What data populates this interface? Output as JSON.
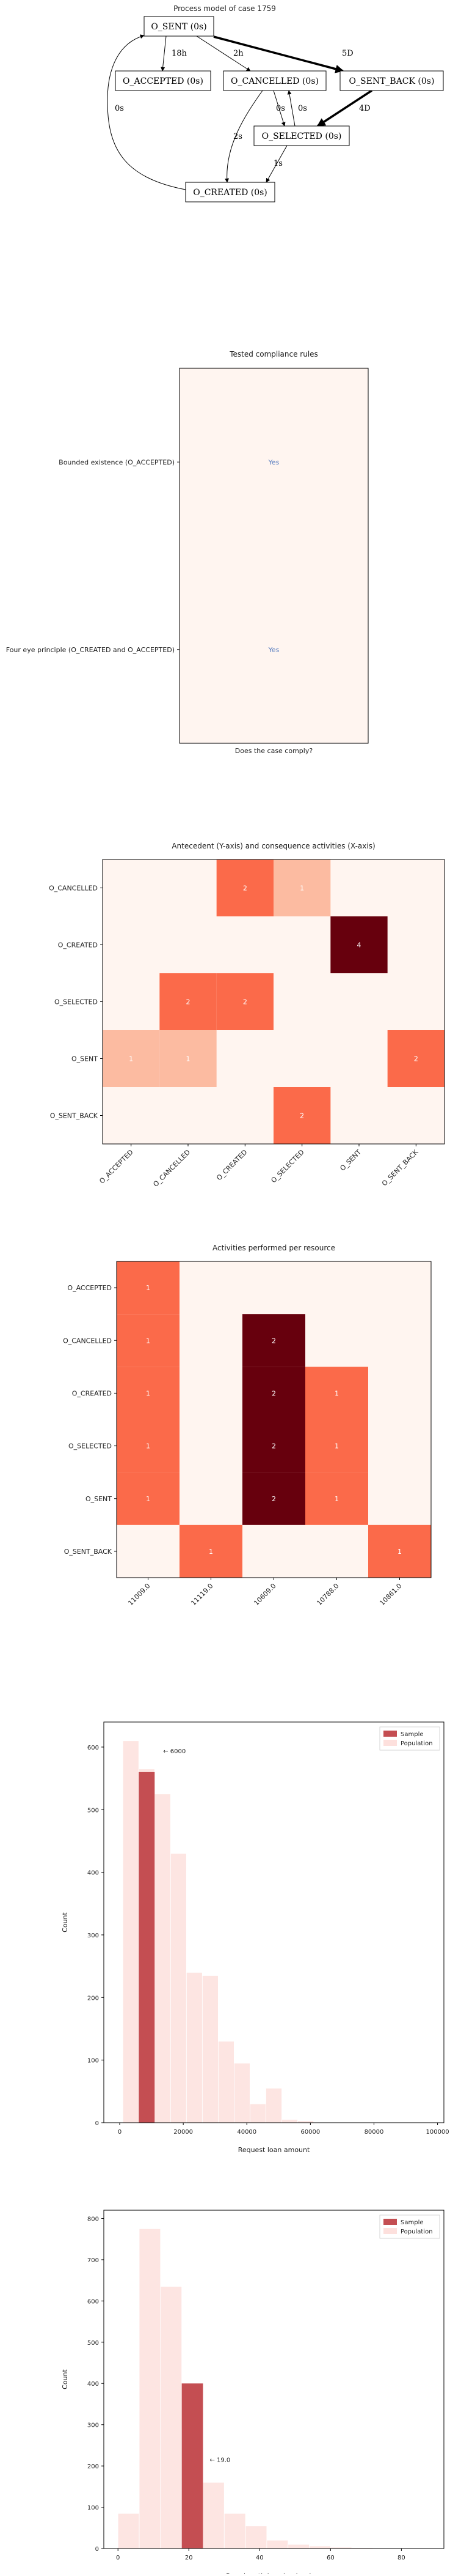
{
  "chart_data": [
    {
      "type": "diagram",
      "title": "Process model of case 1759",
      "nodes": [
        {
          "id": "sent",
          "label": "O_SENT (0s)"
        },
        {
          "id": "accepted",
          "label": "O_ACCEPTED (0s)"
        },
        {
          "id": "cancelled",
          "label": "O_CANCELLED (0s)"
        },
        {
          "id": "sent_back",
          "label": "O_SENT_BACK (0s)"
        },
        {
          "id": "selected",
          "label": "O_SELECTED (0s)"
        },
        {
          "id": "created",
          "label": "O_CREATED (0s)"
        }
      ],
      "edges": [
        {
          "from": "sent",
          "to": "accepted",
          "label": "18h"
        },
        {
          "from": "sent",
          "to": "cancelled",
          "label": "2h"
        },
        {
          "from": "sent",
          "to": "sent_back",
          "label": "5D"
        },
        {
          "from": "created",
          "to": "sent",
          "label": "0s"
        },
        {
          "from": "cancelled",
          "to": "created",
          "label": "2s"
        },
        {
          "from": "cancelled",
          "to": "selected",
          "label": "0s"
        },
        {
          "from": "selected",
          "to": "cancelled",
          "label": "0s"
        },
        {
          "from": "sent_back",
          "to": "selected",
          "label": "4D"
        },
        {
          "from": "selected",
          "to": "created",
          "label": "1s"
        }
      ]
    },
    {
      "type": "table",
      "title": "Tested compliance rules",
      "xlabel": "Does the case comply?",
      "rows": [
        {
          "rule": "Bounded existence (O_ACCEPTED)",
          "value": "Yes"
        },
        {
          "rule": "Four eye principle (O_CREATED and O_ACCEPTED)",
          "value": "Yes"
        }
      ]
    },
    {
      "type": "heatmap",
      "title": "Antecedent (Y-axis) and consequence activities (X-axis)",
      "y": [
        "O_CANCELLED",
        "O_CREATED",
        "O_SELECTED",
        "O_SENT",
        "O_SENT_BACK"
      ],
      "x": [
        "O_ACCEPTED",
        "O_CANCELLED",
        "O_CREATED",
        "O_SELECTED",
        "O_SENT",
        "O_SENT_BACK"
      ],
      "values": [
        [
          0,
          0,
          2,
          1,
          0,
          0
        ],
        [
          0,
          0,
          0,
          0,
          4,
          0
        ],
        [
          0,
          2,
          2,
          0,
          0,
          0
        ],
        [
          1,
          1,
          0,
          0,
          0,
          2
        ],
        [
          0,
          0,
          0,
          2,
          0,
          0
        ]
      ],
      "vmax": 4
    },
    {
      "type": "heatmap",
      "title": "Activities performed per resource",
      "y": [
        "O_ACCEPTED",
        "O_CANCELLED",
        "O_CREATED",
        "O_SELECTED",
        "O_SENT",
        "O_SENT_BACK"
      ],
      "x": [
        "11009.0",
        "11119.0",
        "10609.0",
        "10788.0",
        "10861.0"
      ],
      "values": [
        [
          1,
          0,
          0,
          0,
          0
        ],
        [
          1,
          0,
          2,
          0,
          0
        ],
        [
          1,
          0,
          2,
          1,
          0
        ],
        [
          1,
          0,
          2,
          1,
          0
        ],
        [
          1,
          0,
          2,
          1,
          0
        ],
        [
          0,
          1,
          0,
          0,
          1
        ]
      ],
      "vmax": 2
    },
    {
      "type": "bar",
      "xlabel": "Request loan amount",
      "ylabel": "Count",
      "xlim": [
        -5000,
        102000
      ],
      "ylim": [
        0,
        640
      ],
      "xticks": [
        0,
        20000,
        40000,
        60000,
        80000,
        100000
      ],
      "yticks": [
        0,
        100,
        200,
        300,
        400,
        500,
        600
      ],
      "legend": [
        "Sample",
        "Population"
      ],
      "legend_position": "top-right",
      "annotation": "← 6000",
      "annotation_x": 6000,
      "annotation_y": 590,
      "population_bins": [
        {
          "x0": 1000,
          "x1": 6000,
          "count": 610
        },
        {
          "x0": 6000,
          "x1": 11000,
          "count": 565
        },
        {
          "x0": 11000,
          "x1": 16000,
          "count": 525
        },
        {
          "x0": 16000,
          "x1": 21000,
          "count": 430
        },
        {
          "x0": 21000,
          "x1": 26000,
          "count": 240
        },
        {
          "x0": 26000,
          "x1": 31000,
          "count": 235
        },
        {
          "x0": 31000,
          "x1": 36000,
          "count": 130
        },
        {
          "x0": 36000,
          "x1": 41000,
          "count": 95
        },
        {
          "x0": 41000,
          "x1": 46000,
          "count": 30
        },
        {
          "x0": 46000,
          "x1": 51000,
          "count": 55
        },
        {
          "x0": 51000,
          "x1": 56000,
          "count": 5
        },
        {
          "x0": 56000,
          "x1": 61000,
          "count": 3
        }
      ],
      "sample_bins": [
        {
          "x0": 6000,
          "x1": 11000,
          "count": 560
        }
      ]
    },
    {
      "type": "bar",
      "xlabel": "Case length in calendar days",
      "ylabel": "Count",
      "xlim": [
        -4,
        92
      ],
      "ylim": [
        0,
        820
      ],
      "xticks": [
        0,
        20,
        40,
        60,
        80
      ],
      "yticks": [
        0,
        100,
        200,
        300,
        400,
        500,
        600,
        700,
        800
      ],
      "legend": [
        "Sample",
        "Population"
      ],
      "legend_position": "top-right",
      "annotation": "← 19.0",
      "annotation_x": 19,
      "annotation_y": 210,
      "population_bins": [
        {
          "x0": 0,
          "x1": 6,
          "count": 85
        },
        {
          "x0": 6,
          "x1": 12,
          "count": 775
        },
        {
          "x0": 12,
          "x1": 18,
          "count": 635
        },
        {
          "x0": 18,
          "x1": 24,
          "count": 290
        },
        {
          "x0": 24,
          "x1": 30,
          "count": 160
        },
        {
          "x0": 30,
          "x1": 36,
          "count": 85
        },
        {
          "x0": 36,
          "x1": 42,
          "count": 55
        },
        {
          "x0": 42,
          "x1": 48,
          "count": 20
        },
        {
          "x0": 48,
          "x1": 54,
          "count": 10
        },
        {
          "x0": 54,
          "x1": 60,
          "count": 6
        },
        {
          "x0": 60,
          "x1": 66,
          "count": 3
        },
        {
          "x0": 66,
          "x1": 72,
          "count": 2
        },
        {
          "x0": 72,
          "x1": 78,
          "count": 1
        },
        {
          "x0": 78,
          "x1": 84,
          "count": 1
        }
      ],
      "sample_bins": [
        {
          "x0": 18,
          "x1": 24,
          "count": 400
        }
      ]
    }
  ]
}
